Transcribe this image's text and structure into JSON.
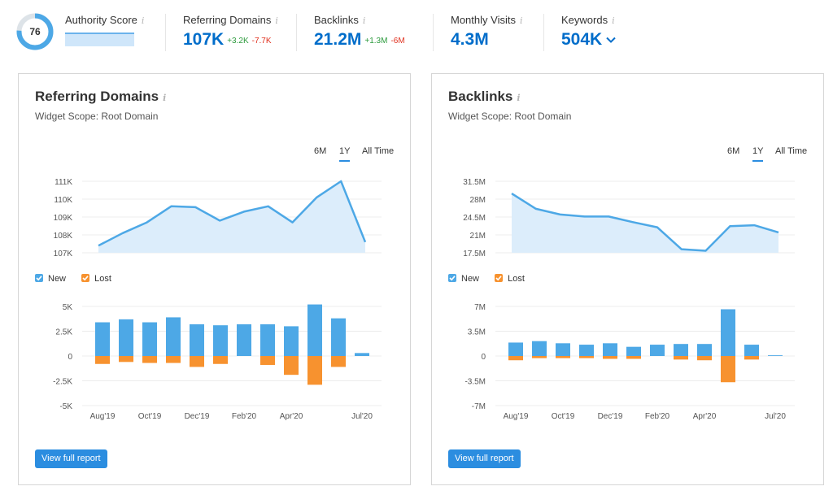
{
  "metrics": {
    "authority": {
      "label": "Authority Score",
      "value": "76",
      "percent": 76
    },
    "referring_domains": {
      "label": "Referring Domains",
      "value": "107K",
      "delta_up": "+3.2K",
      "delta_down": "-7.7K"
    },
    "backlinks": {
      "label": "Backlinks",
      "value": "21.2M",
      "delta_up": "+1.3M",
      "delta_down": "-6M"
    },
    "monthly_visits": {
      "label": "Monthly Visits",
      "value": "4.3M"
    },
    "keywords": {
      "label": "Keywords",
      "value": "504K"
    },
    "info_glyph": "i"
  },
  "colors": {
    "accent": "#006dca",
    "line": "#4da8e6",
    "area": "#dcedfb",
    "new": "#4da8e6",
    "lost": "#f7922f"
  },
  "widgets": [
    {
      "title": "Referring Domains",
      "scope": "Widget Scope: Root Domain",
      "ranges": [
        "6M",
        "1Y",
        "All Time"
      ],
      "active_range": "1Y",
      "legend_new": "New",
      "legend_lost": "Lost",
      "button": "View full report"
    },
    {
      "title": "Backlinks",
      "scope": "Widget Scope: Root Domain",
      "ranges": [
        "6M",
        "1Y",
        "All Time"
      ],
      "active_range": "1Y",
      "legend_new": "New",
      "legend_lost": "Lost",
      "button": "View full report"
    }
  ],
  "chart_data": [
    {
      "type": "area",
      "title": "Referring Domains",
      "y_ticks": [
        "111K",
        "110K",
        "109K",
        "108K",
        "107K"
      ],
      "ylim": [
        106.5,
        111.5
      ],
      "values": [
        107.4,
        108.1,
        108.7,
        109.6,
        109.55,
        108.8,
        109.3,
        109.6,
        108.7,
        110.1,
        111,
        107.6
      ]
    },
    {
      "type": "bar",
      "title": "Referring Domains New/Lost",
      "x_labels": [
        "Aug'19",
        "Oct'19",
        "Dec'19",
        "Feb'20",
        "Apr'20",
        "Jul'20"
      ],
      "y_ticks": [
        "5K",
        "2.5K",
        "0",
        "-2.5K",
        "-5K"
      ],
      "ylim": [
        -5,
        5
      ],
      "new": [
        3.4,
        3.7,
        3.4,
        3.9,
        3.2,
        3.1,
        3.2,
        3.2,
        3.0,
        5.2,
        3.8,
        0.3
      ],
      "lost": [
        -0.8,
        -0.6,
        -0.7,
        -0.7,
        -1.1,
        -0.8,
        0,
        -0.9,
        -1.9,
        -2.9,
        -1.1,
        0
      ]
    },
    {
      "type": "area",
      "title": "Backlinks",
      "y_ticks": [
        "31.5M",
        "28M",
        "24.5M",
        "21M",
        "17.5M"
      ],
      "ylim": [
        16.5,
        32.5
      ],
      "values": [
        29.1,
        26.1,
        25.0,
        24.6,
        24.6,
        23.5,
        22.5,
        18.2,
        17.9,
        22.7,
        22.9,
        21.5
      ]
    },
    {
      "type": "bar",
      "title": "Backlinks New/Lost",
      "x_labels": [
        "Aug'19",
        "Oct'19",
        "Dec'19",
        "Feb'20",
        "Apr'20",
        "Jul'20"
      ],
      "y_ticks": [
        "7M",
        "3.5M",
        "0",
        "-3.5M",
        "-7M"
      ],
      "ylim": [
        -7,
        7
      ],
      "new": [
        1.9,
        2.1,
        1.8,
        1.6,
        1.8,
        1.3,
        1.6,
        1.7,
        1.7,
        6.6,
        1.6,
        0.1
      ],
      "lost": [
        -0.6,
        -0.3,
        -0.3,
        -0.3,
        -0.4,
        -0.4,
        0,
        -0.5,
        -0.6,
        -3.7,
        -0.5,
        0
      ]
    }
  ]
}
